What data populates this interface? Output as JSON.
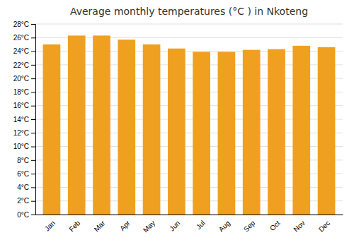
{
  "chart_data": {
    "type": "bar",
    "title": "Average monthly temperatures (°C ) in Nkoteng",
    "categories": [
      "Jan",
      "Feb",
      "Mar",
      "Apr",
      "May",
      "Jun",
      "Jul",
      "Aug",
      "Sep",
      "Oct",
      "Nov",
      "Dec"
    ],
    "values": [
      25.0,
      26.3,
      26.3,
      25.7,
      25.0,
      24.4,
      23.9,
      23.9,
      24.2,
      24.3,
      24.8,
      24.6
    ],
    "color": "#F0A020",
    "ylim": [
      0,
      28
    ],
    "yticks": [
      {
        "value": 0,
        "label": "0°C"
      },
      {
        "value": 2,
        "label": "2°C"
      },
      {
        "value": 4,
        "label": "4°C"
      },
      {
        "value": 6,
        "label": "6°C"
      },
      {
        "value": 8,
        "label": "8°C"
      },
      {
        "value": 10,
        "label": "10°C"
      },
      {
        "value": 12,
        "label": "12°C"
      },
      {
        "value": 14,
        "label": "14°C"
      },
      {
        "value": 16,
        "label": "16°C"
      },
      {
        "value": 18,
        "label": "18°C"
      },
      {
        "value": 20,
        "label": "20°C"
      },
      {
        "value": 22,
        "label": "22°C"
      },
      {
        "value": 24,
        "label": "24°C"
      },
      {
        "value": 26,
        "label": "26°C"
      },
      {
        "value": 28,
        "label": "28°C"
      }
    ],
    "grid": true
  }
}
